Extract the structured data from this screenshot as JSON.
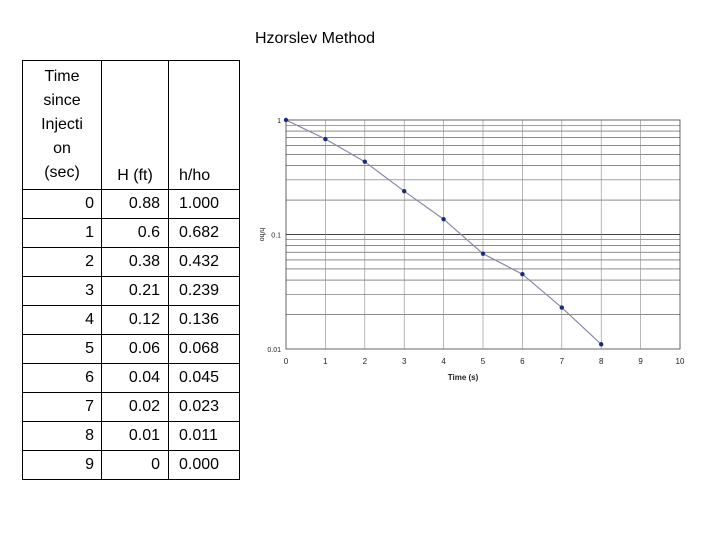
{
  "page": {
    "title": "Hzorslev Method"
  },
  "table": {
    "headers": [
      "Time\nsince\nInjecti\non\n(sec)",
      "H (ft)",
      "h/ho"
    ],
    "rows": [
      [
        "0",
        "0.88",
        "1.000"
      ],
      [
        "1",
        "0.6",
        "0.682"
      ],
      [
        "2",
        "0.38",
        "0.432"
      ],
      [
        "3",
        "0.21",
        "0.239"
      ],
      [
        "4",
        "0.12",
        "0.136"
      ],
      [
        "5",
        "0.06",
        "0.068"
      ],
      [
        "6",
        "0.04",
        "0.045"
      ],
      [
        "7",
        "0.02",
        "0.023"
      ],
      [
        "8",
        "0.01",
        "0.011"
      ],
      [
        "9",
        "0",
        "0.000"
      ]
    ]
  },
  "chart_data": {
    "type": "line",
    "title": "",
    "xlabel": "Time (s)",
    "ylabel": "h/ho",
    "x": [
      0,
      1,
      2,
      3,
      4,
      5,
      6,
      7,
      8
    ],
    "series": [
      {
        "values": [
          1.0,
          0.682,
          0.432,
          0.239,
          0.136,
          0.068,
          0.045,
          0.023,
          0.011
        ]
      }
    ],
    "xlim": [
      0,
      10
    ],
    "ylim": [
      0.01,
      1
    ],
    "yscale": "log",
    "x_ticks": [
      "0",
      "1",
      "2",
      "3",
      "4",
      "5",
      "6",
      "7",
      "8",
      "9",
      "10"
    ],
    "y_ticks": [
      "1",
      "0.1",
      "0.01"
    ],
    "grid": true,
    "line_color": "#8888aa",
    "marker_color": "#1a2a80"
  }
}
